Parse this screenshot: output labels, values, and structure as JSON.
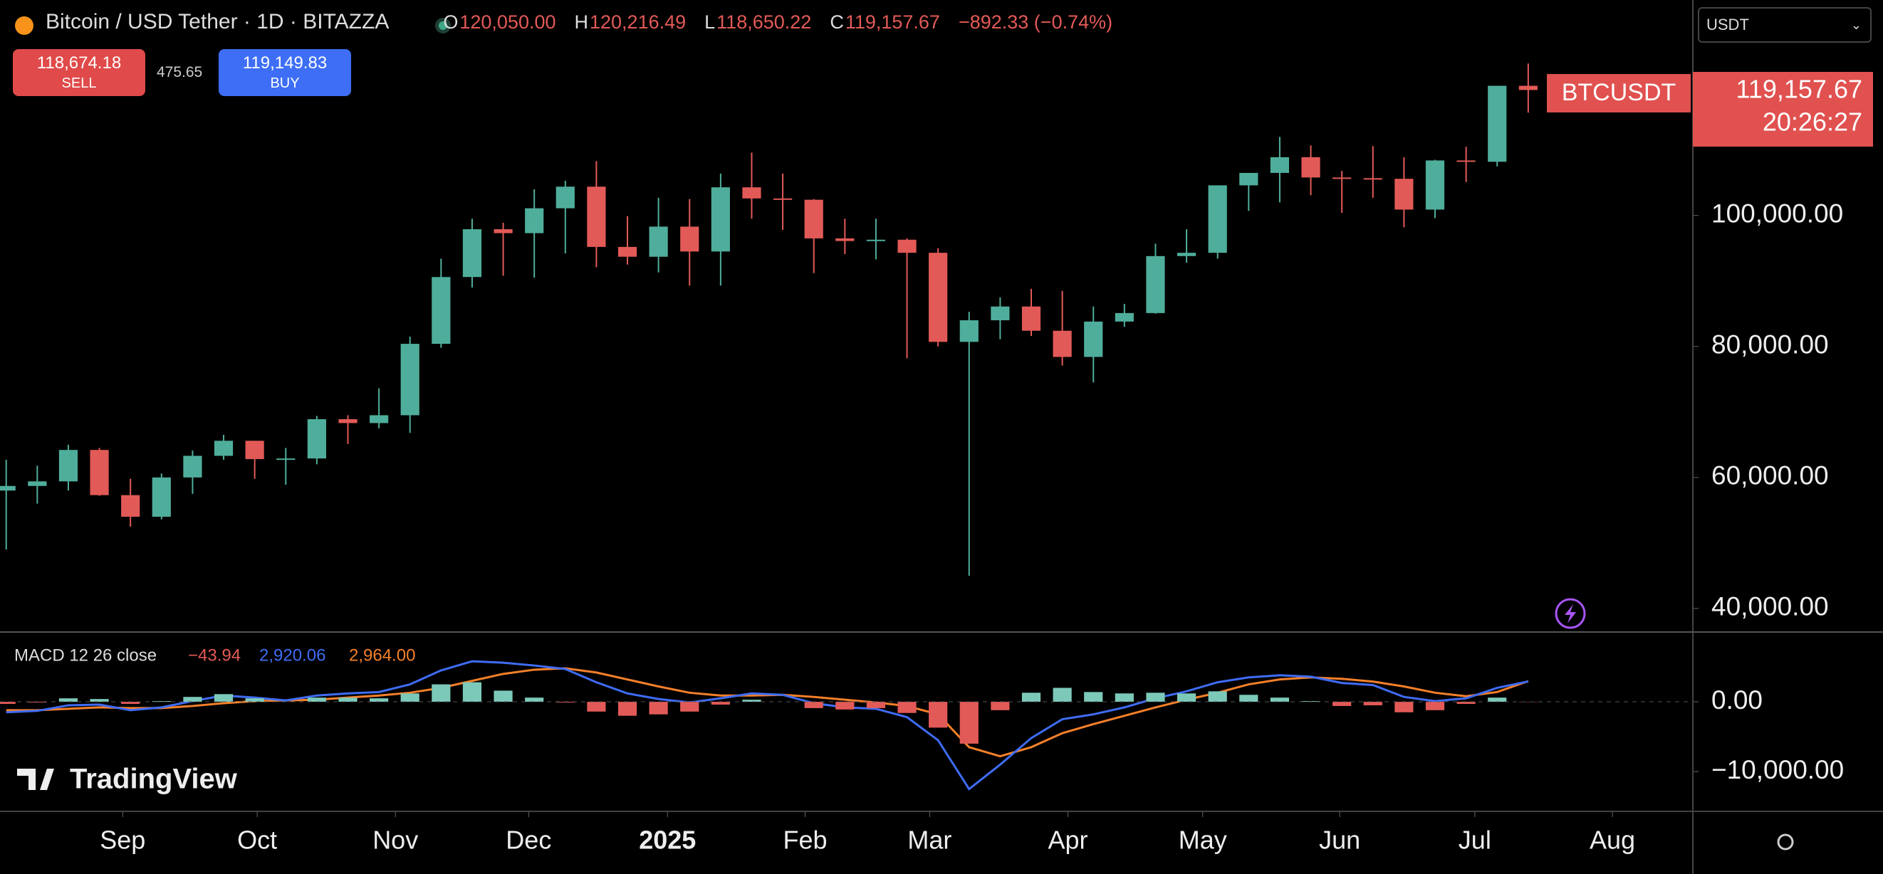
{
  "header": {
    "title": "Bitcoin / USD Tether · 1D · BITAZZA",
    "ohlc": [
      {
        "key": "O",
        "value": "120,050.00"
      },
      {
        "key": "H",
        "value": "120,216.49"
      },
      {
        "key": "L",
        "value": "118,650.22"
      },
      {
        "key": "C",
        "value": "119,157.67"
      }
    ],
    "change": "−892.33 (−0.74%)",
    "sell": {
      "price": "118,674.18",
      "label": "SELL"
    },
    "spread": "475.65",
    "buy": {
      "price": "119,149.83",
      "label": "BUY"
    },
    "currency": "USDT"
  },
  "price_tag": {
    "symbol": "BTCUSDT",
    "price": "119,157.67",
    "countdown": "20:26:27"
  },
  "watermark": "TradingView",
  "chart_data": [
    {
      "type": "candlestick",
      "up_color": "#4fae9b",
      "down_color": "#e25a57",
      "xlim": [
        -0.2,
        54.3
      ],
      "xticks": [
        {
          "value": 3.75,
          "label": "Sep"
        },
        {
          "value": 8.08,
          "label": "Oct"
        },
        {
          "value": 12.53,
          "label": "Nov"
        },
        {
          "value": 16.82,
          "label": "Dec"
        },
        {
          "value": 21.29,
          "label": "2025"
        },
        {
          "value": 25.72,
          "label": "Feb"
        },
        {
          "value": 29.73,
          "label": "Mar"
        },
        {
          "value": 34.18,
          "label": "Apr"
        },
        {
          "value": 38.52,
          "label": "May"
        },
        {
          "value": 42.93,
          "label": "Jun"
        },
        {
          "value": 47.28,
          "label": "Jul"
        },
        {
          "value": 51.71,
          "label": "Aug"
        }
      ],
      "ylim": [
        36400,
        132900
      ],
      "yticks": [
        {
          "value": 40000,
          "label": "40,000.00"
        },
        {
          "value": 60000,
          "label": "60,000.00"
        },
        {
          "value": 80000,
          "label": "80,000.00"
        },
        {
          "value": 100000,
          "label": "100,000.00"
        }
      ],
      "open": [
        58000,
        58700,
        59400,
        64200,
        57300,
        54000,
        60000,
        63300,
        65600,
        62800,
        62900,
        68900,
        68300,
        69500,
        80400,
        90600,
        97900,
        97300,
        101100,
        104400,
        95200,
        93700,
        98300,
        94500,
        104300,
        102600,
        102400,
        96500,
        96100,
        96300,
        94300,
        80700,
        84000,
        86100,
        82400,
        78400,
        83800,
        85100,
        93800,
        94300,
        104600,
        106500,
        108900,
        105800,
        105700,
        105600,
        100900,
        108400,
        108200,
        119800
      ],
      "high": [
        62700,
        61800,
        65000,
        64500,
        59800,
        60600,
        64100,
        66500,
        65600,
        64500,
        69400,
        69500,
        73600,
        81500,
        93400,
        99500,
        98900,
        104000,
        105300,
        108300,
        99900,
        102700,
        102500,
        106400,
        109600,
        106400,
        102500,
        99500,
        99500,
        96500,
        95000,
        85300,
        87500,
        88800,
        88500,
        86100,
        86500,
        95700,
        97900,
        104100,
        105800,
        112000,
        110700,
        106800,
        110600,
        108900,
        108500,
        110500,
        119500,
        123200
      ],
      "low": [
        49000,
        56000,
        58000,
        57200,
        52500,
        53600,
        57500,
        62700,
        59800,
        58900,
        62000,
        65100,
        67500,
        66800,
        79800,
        89000,
        90800,
        90500,
        94200,
        92100,
        92500,
        91300,
        89300,
        89300,
        99500,
        97800,
        91200,
        94100,
        93300,
        78200,
        80000,
        45000,
        81100,
        81600,
        77100,
        74500,
        83000,
        85000,
        92800,
        93400,
        100700,
        102000,
        103100,
        100400,
        102700,
        98200,
        99600,
        105100,
        107500,
        115700
      ],
      "close": [
        58700,
        59400,
        64200,
        57300,
        54000,
        60000,
        63300,
        65600,
        62800,
        62900,
        68900,
        68300,
        69500,
        80400,
        90600,
        97900,
        97300,
        101100,
        104400,
        95200,
        93700,
        98300,
        94500,
        104300,
        102600,
        102400,
        96500,
        96100,
        96300,
        94300,
        80700,
        84000,
        86100,
        82400,
        78400,
        83800,
        85100,
        93800,
        94300,
        104600,
        106500,
        108900,
        105800,
        105700,
        105600,
        100900,
        108400,
        108200,
        119800,
        119157.67
      ]
    },
    {
      "type": "macd",
      "title": "MACD 12 26 close",
      "legend_values": [
        "−43.94",
        "2,920.06",
        "2,964.00"
      ],
      "ylim": [
        -15700,
        10000
      ],
      "yticks": [
        {
          "value": 0,
          "label": "0.00"
        },
        {
          "value": -10000,
          "label": "−10,000.00"
        }
      ],
      "series": [
        {
          "style": "histogram",
          "color": "#e25a57",
          "up_color": "#7cc9b9",
          "values": [
            -300,
            -100,
            500,
            400,
            -300,
            100,
            700,
            1100,
            500,
            0,
            600,
            600,
            500,
            1200,
            2500,
            2800,
            1600,
            600,
            -100,
            -1400,
            -2000,
            -1800,
            -1400,
            -400,
            300,
            0,
            -900,
            -1100,
            -900,
            -1600,
            -3700,
            -6000,
            -1200,
            1300,
            2000,
            1400,
            1200,
            1300,
            1200,
            1500,
            1000,
            600,
            100,
            -600,
            -500,
            -1500,
            -1200,
            -300,
            600,
            -43.94
          ]
        },
        {
          "style": "line",
          "color": "#3f6cf4",
          "values": [
            -1500,
            -1300,
            -500,
            -400,
            -1200,
            -800,
            100,
            900,
            600,
            200,
            900,
            1200,
            1400,
            2500,
            4500,
            5800,
            5600,
            5200,
            4700,
            2800,
            1200,
            400,
            -100,
            500,
            1200,
            1000,
            -200,
            -800,
            -1000,
            -2200,
            -5500,
            -12500,
            -9000,
            -5200,
            -2500,
            -1800,
            -800,
            500,
            1500,
            2800,
            3500,
            3800,
            3600,
            2700,
            2400,
            700,
            100,
            500,
            2000,
            2920.06
          ]
        },
        {
          "style": "line",
          "color": "#f5802a",
          "values": [
            -1200,
            -1200,
            -1000,
            -800,
            -900,
            -900,
            -600,
            -200,
            100,
            200,
            300,
            600,
            900,
            1300,
            2000,
            3000,
            4000,
            4600,
            4800,
            4200,
            3200,
            2200,
            1300,
            900,
            900,
            1000,
            700,
            300,
            -100,
            -600,
            -1800,
            -6500,
            -7800,
            -6500,
            -4500,
            -3200,
            -2000,
            -800,
            300,
            1300,
            2500,
            3200,
            3500,
            3300,
            2900,
            2200,
            1300,
            800,
            1400,
            2964.0
          ]
        }
      ]
    }
  ]
}
